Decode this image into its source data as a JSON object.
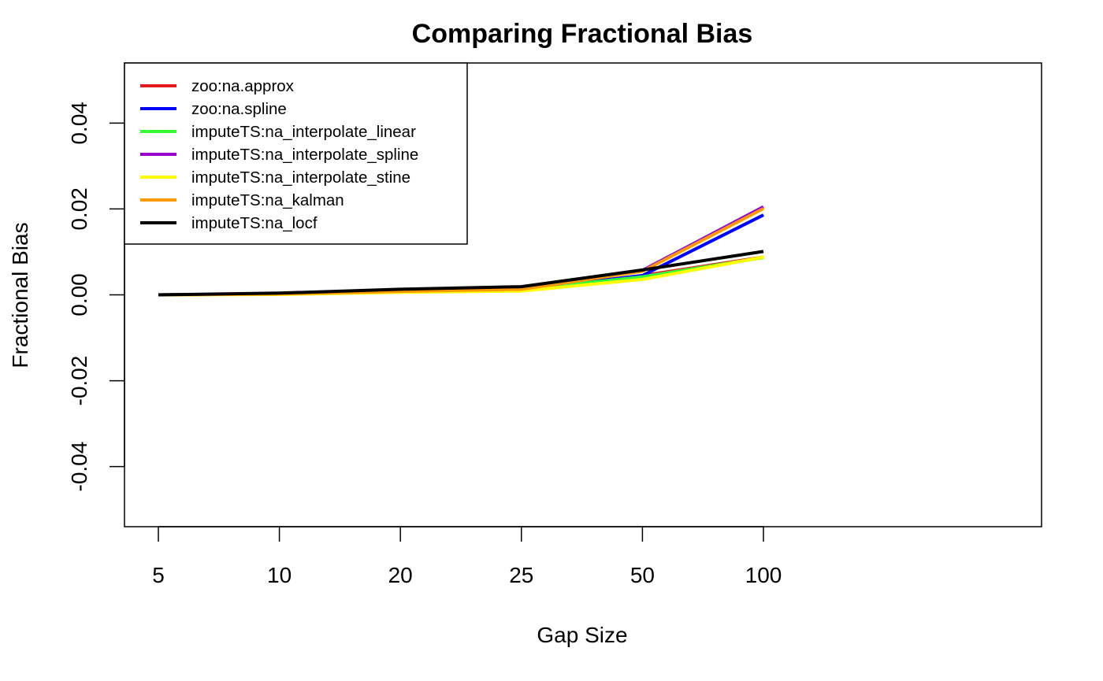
{
  "chart_data": {
    "type": "line",
    "title": "Comparing Fractional Bias",
    "xlabel": "Gap Size",
    "ylabel": "Fractional Bias",
    "categories": [
      "5",
      "10",
      "20",
      "25",
      "50",
      "100"
    ],
    "yticks": [
      "-0.04",
      "-0.02",
      "0.00",
      "0.02",
      "0.04"
    ],
    "ylim": [
      -0.054,
      0.054
    ],
    "grid": false,
    "legend_position": "top-left",
    "series": [
      {
        "name": "zoo:na.approx",
        "color": "#e41a1c",
        "values": [
          0.0,
          0.0002,
          0.0008,
          0.0012,
          0.0045,
          0.0088
        ]
      },
      {
        "name": "zoo:na.spline",
        "color": "#0000ff",
        "values": [
          0.0,
          0.0002,
          0.0008,
          0.0012,
          0.0045,
          0.0186
        ]
      },
      {
        "name": "imputeTS:na_interpolate_linear",
        "color": "#33ff33",
        "values": [
          0.0,
          0.0002,
          0.0008,
          0.0012,
          0.0042,
          0.0087
        ]
      },
      {
        "name": "imputeTS:na_interpolate_spline",
        "color": "#9900cc",
        "values": [
          0.0,
          0.0002,
          0.0008,
          0.0012,
          0.0057,
          0.0205
        ]
      },
      {
        "name": "imputeTS:na_interpolate_stine",
        "color": "#ffff00",
        "values": [
          0.0,
          0.0001,
          0.0006,
          0.0009,
          0.0036,
          0.0088
        ]
      },
      {
        "name": "imputeTS:na_kalman",
        "color": "#ff9900",
        "values": [
          0.0,
          0.0002,
          0.0008,
          0.0013,
          0.0055,
          0.0201
        ]
      },
      {
        "name": "imputeTS:na_locf",
        "color": "#000000",
        "values": [
          0.0,
          0.0004,
          0.0013,
          0.0019,
          0.0058,
          0.0101
        ]
      }
    ]
  }
}
